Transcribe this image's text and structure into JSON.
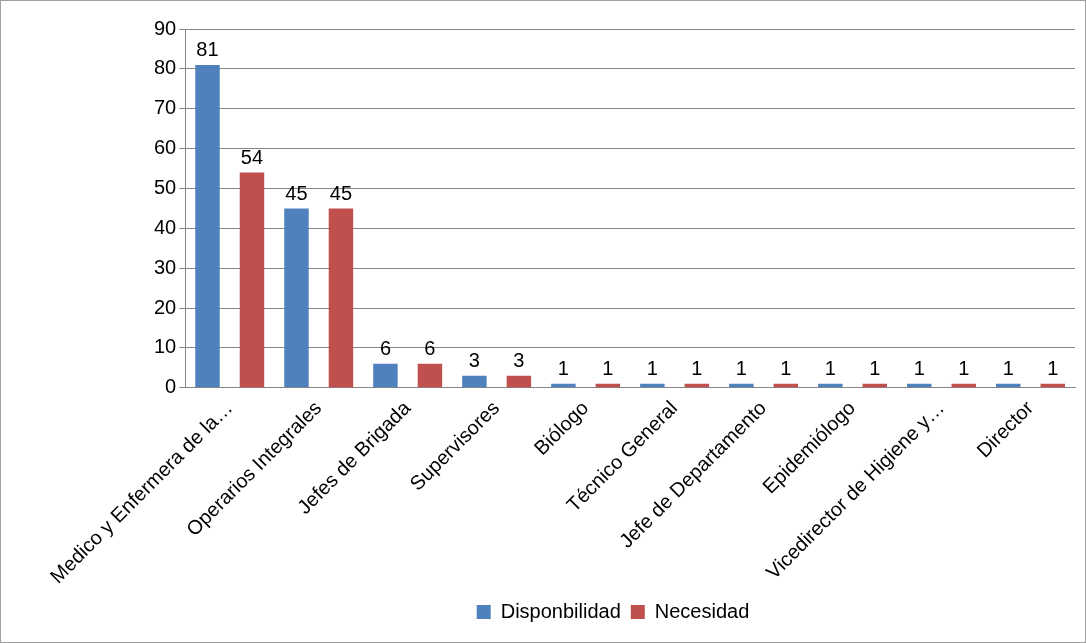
{
  "chart_data": {
    "type": "bar",
    "categories": [
      "Medico y Enfermera de la…",
      "Operarios Integrales",
      "Jefes de Brigada",
      "Supervisores",
      "Biólogo",
      "Técnico General",
      "Jefe de Departamento",
      "Epidemiólogo",
      "Vicedirector de Higiene y…",
      "Director"
    ],
    "series": [
      {
        "name": "Disponbilidad",
        "color": "#4f81bd",
        "values": [
          81,
          45,
          6,
          3,
          1,
          1,
          1,
          1,
          1,
          1
        ]
      },
      {
        "name": "Necesidad",
        "color": "#c0504d",
        "values": [
          54,
          45,
          6,
          3,
          1,
          1,
          1,
          1,
          1,
          1
        ]
      }
    ],
    "ylim": [
      0,
      90
    ],
    "yticks": [
      0,
      10,
      20,
      30,
      40,
      50,
      60,
      70,
      80,
      90
    ],
    "grid": "y",
    "legend": "bottom",
    "data_labels": true
  }
}
